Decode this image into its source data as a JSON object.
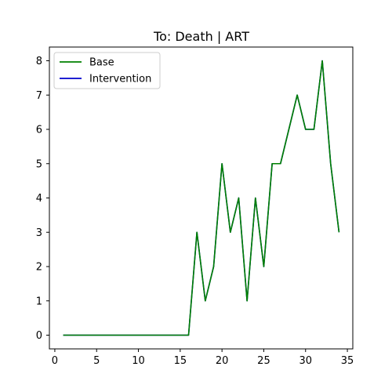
{
  "chart_data": {
    "type": "line",
    "title": "To: Death | ART",
    "xlabel": "",
    "ylabel": "",
    "xlim": [
      -0.65,
      35.65
    ],
    "ylim": [
      -0.4,
      8.4
    ],
    "xticks": [
      0,
      5,
      10,
      15,
      20,
      25,
      30,
      35
    ],
    "yticks": [
      0,
      1,
      2,
      3,
      4,
      5,
      6,
      7,
      8
    ],
    "grid": false,
    "legend_position": "top-left",
    "x": [
      1,
      2,
      3,
      4,
      5,
      6,
      7,
      8,
      9,
      10,
      11,
      12,
      13,
      14,
      15,
      16,
      17,
      18,
      19,
      20,
      21,
      22,
      23,
      24,
      25,
      26,
      27,
      28,
      29,
      30,
      31,
      32,
      33,
      34
    ],
    "series": [
      {
        "name": "Base",
        "color": "#008000",
        "values": [
          0,
          0,
          0,
          0,
          0,
          0,
          0,
          0,
          0,
          0,
          0,
          0,
          0,
          0,
          0,
          0,
          3,
          1,
          2,
          5,
          3,
          4,
          1,
          4,
          2,
          5,
          5,
          6,
          7,
          6,
          6,
          8,
          5,
          3
        ]
      },
      {
        "name": "Intervention",
        "color": "#0000cc",
        "values": [
          0,
          0,
          0,
          0,
          0,
          0,
          0,
          0,
          0,
          0,
          0,
          0,
          0,
          0,
          0,
          0,
          3,
          1,
          2,
          5,
          3,
          4,
          1,
          4,
          2,
          5,
          5,
          6,
          7,
          6,
          6,
          8,
          5,
          3
        ]
      }
    ]
  }
}
